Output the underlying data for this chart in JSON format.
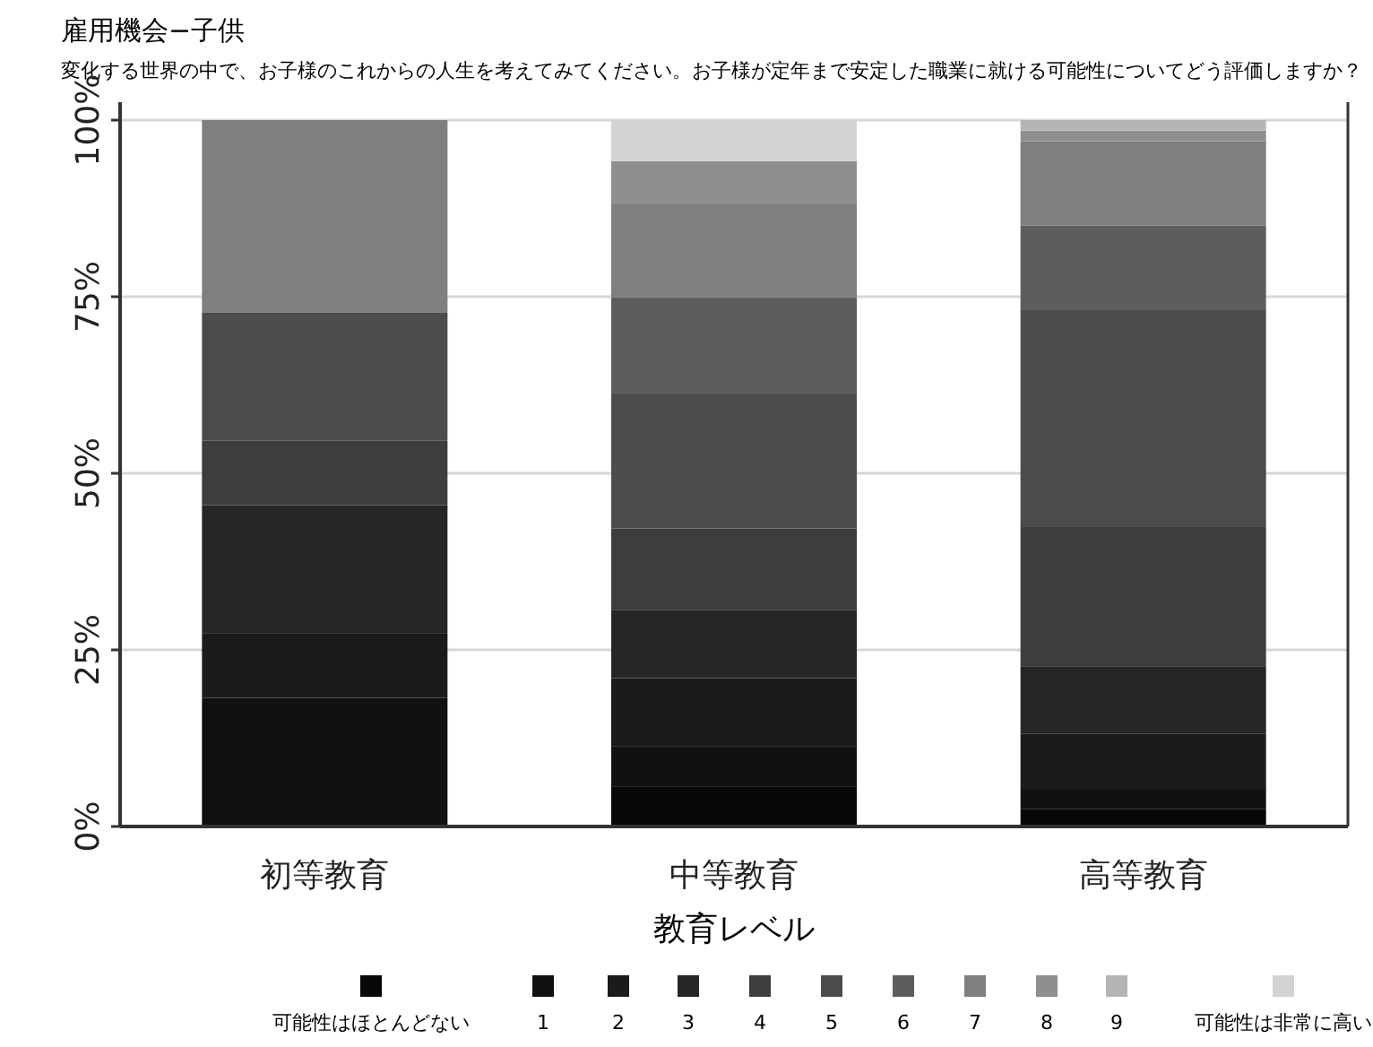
{
  "chart_data": {
    "type": "bar",
    "stacked": true,
    "title": "雇用機会−子供",
    "subtitle": "変化する世界の中で、お子様のこれからの人生を考えてみてください。お子様が定年まで安定した職業に就ける可能性についてどう評価しますか？",
    "xlabel": "教育レベル",
    "categories": [
      "初等教育",
      "中等教育",
      "高等教育"
    ],
    "ylim": [
      0,
      100
    ],
    "yticks": [
      {
        "value": 0,
        "label": "0%"
      },
      {
        "value": 25,
        "label": "25%"
      },
      {
        "value": 50,
        "label": "50%"
      },
      {
        "value": 75,
        "label": "75%"
      },
      {
        "value": 100,
        "label": "100%"
      }
    ],
    "grid": "y",
    "legend": "bottom",
    "series": [
      {
        "name": "可能性はほとんどない",
        "color": "#080808",
        "values": [
          0,
          5.6,
          2.5
        ]
      },
      {
        "name": "1",
        "color": "#111111",
        "values": [
          18.2,
          5.8,
          2.7
        ]
      },
      {
        "name": "2",
        "color": "#1b1b1b",
        "values": [
          9.1,
          9.6,
          7.9
        ]
      },
      {
        "name": "3",
        "color": "#262626",
        "values": [
          18.2,
          9.6,
          9.5
        ]
      },
      {
        "name": "4",
        "color": "#3d3d3d",
        "values": [
          9.1,
          11.6,
          19.9
        ]
      },
      {
        "name": "5",
        "color": "#4c4c4c",
        "values": [
          18.2,
          19.1,
          30.6
        ]
      },
      {
        "name": "6",
        "color": "#5d5d5d",
        "values": [
          0,
          13.6,
          12.0
        ]
      },
      {
        "name": "7",
        "color": "#7f7f7f",
        "values": [
          27.2,
          13.4,
          11.9
        ]
      },
      {
        "name": "8",
        "color": "#8f8f8f",
        "values": [
          0,
          5.9,
          1.5
        ]
      },
      {
        "name": "9",
        "color": "#b5b5b5",
        "values": [
          0,
          0,
          1.5
        ]
      },
      {
        "name": "可能性は非常に高い",
        "color": "#d3d3d3",
        "values": [
          0,
          5.8,
          0
        ]
      }
    ]
  }
}
